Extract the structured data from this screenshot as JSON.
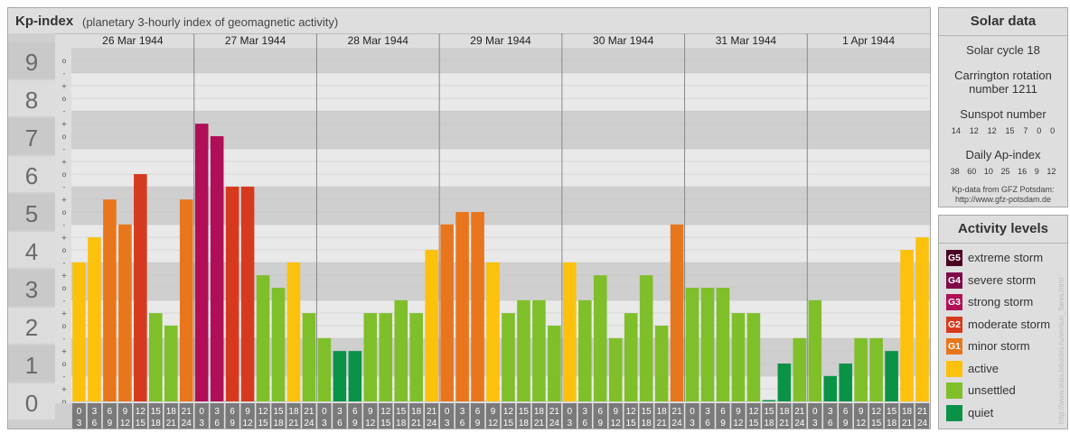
{
  "title": {
    "main": "Kp-index",
    "sub": "(planetary 3-hourly index of geomagnetic activity)"
  },
  "chart_data": {
    "type": "bar",
    "title": "Kp-index",
    "subtitle": "(planetary 3-hourly index of geomagnetic activity)",
    "ylim": [
      0,
      9
    ],
    "y_ticks": [
      "0",
      "1",
      "2",
      "3",
      "4",
      "5",
      "6",
      "7",
      "8",
      "9"
    ],
    "sub_ticks": [
      "o",
      "+",
      "-"
    ],
    "days": [
      "26 Mar 1944",
      "27 Mar 1944",
      "28 Mar 1944",
      "29 Mar 1944",
      "30 Mar 1944",
      "31 Mar 1944",
      "1 Apr 1944"
    ],
    "intervals": [
      [
        "0",
        "3"
      ],
      [
        "3",
        "6"
      ],
      [
        "6",
        "9"
      ],
      [
        "9",
        "12"
      ],
      [
        "12",
        "15"
      ],
      [
        "15",
        "18"
      ],
      [
        "18",
        "21"
      ],
      [
        "21",
        "24"
      ]
    ],
    "values": [
      [
        3.67,
        4.33,
        5.33,
        4.67,
        6.0,
        2.33,
        2.0,
        5.33
      ],
      [
        7.33,
        7.0,
        5.67,
        5.67,
        3.33,
        3.0,
        3.67,
        2.33
      ],
      [
        1.67,
        1.33,
        1.33,
        2.33,
        2.33,
        2.67,
        2.33,
        4.0
      ],
      [
        4.67,
        5.0,
        5.0,
        3.67,
        2.33,
        2.67,
        2.67,
        2.0
      ],
      [
        3.67,
        2.67,
        3.33,
        1.67,
        2.33,
        3.33,
        2.0,
        4.67
      ],
      [
        3.0,
        3.0,
        3.0,
        2.33,
        2.33,
        0.0,
        1.0,
        1.67
      ],
      [
        2.67,
        0.67,
        1.0,
        1.67,
        1.67,
        1.33,
        4.0,
        4.33
      ]
    ],
    "level_colors": {
      "quiet": "#0a9247",
      "unsettled": "#7fbf2a",
      "active": "#fcc10c",
      "G1": "#e8761c",
      "G2": "#d63a1e",
      "G3": "#b00e56",
      "G4": "#7d0a47",
      "G5": "#4c0024"
    }
  },
  "solar": {
    "heading": "Solar data",
    "cycle": "Solar cycle 18",
    "carrington": "Carrington rotation number 1211",
    "sunspot_label": "Sunspot number",
    "sunspot_values": [
      "14",
      "12",
      "12",
      "15",
      "7",
      "0",
      "0"
    ],
    "ap_label": "Daily Ap-index",
    "ap_values": [
      "38",
      "60",
      "10",
      "25",
      "16",
      "9",
      "12"
    ],
    "credit_line1": "Kp-data from GFZ Potsdam:",
    "credit_line2": "http://www.gfz-potsdam.de"
  },
  "levels": {
    "heading": "Activity levels",
    "items": [
      {
        "code": "G5",
        "label": "extreme storm",
        "color": "#4c0024"
      },
      {
        "code": "G4",
        "label": "severe storm",
        "color": "#7d0a47"
      },
      {
        "code": "G3",
        "label": "strong storm",
        "color": "#b00e56"
      },
      {
        "code": "G2",
        "label": "moderate storm",
        "color": "#d63a1e"
      },
      {
        "code": "G1",
        "label": "minor storm",
        "color": "#e8761c"
      },
      {
        "code": "",
        "label": "active",
        "color": "#fcc10c"
      },
      {
        "code": "",
        "label": "unsettled",
        "color": "#7fbf2a"
      },
      {
        "code": "",
        "label": "quiet",
        "color": "#0a9247"
      }
    ]
  },
  "watermark": "http://www.tesis.lebedev.ru/en/sun_flares.html"
}
